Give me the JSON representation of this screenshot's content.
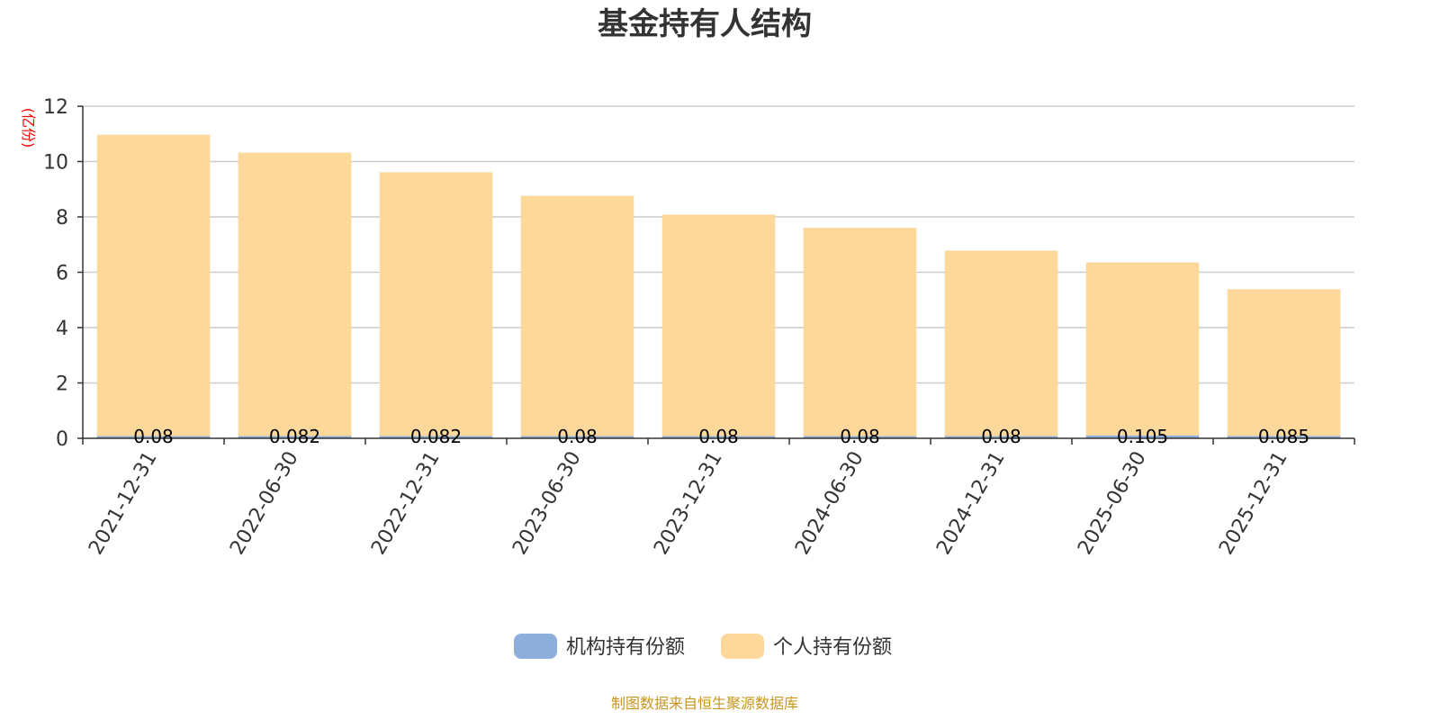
{
  "chart_data": {
    "type": "bar",
    "stacked": true,
    "title": "基金持有人结构",
    "unit_label": "(亿份)",
    "categories": [
      "2021-12-31",
      "2022-06-30",
      "2022-12-31",
      "2023-06-30",
      "2023-12-31",
      "2024-06-30",
      "2024-12-31",
      "2025-06-30",
      "2025-12-31"
    ],
    "series": [
      {
        "name": "机构持有份额",
        "color": "#8eaedb",
        "values": [
          0.08,
          0.082,
          0.082,
          0.08,
          0.08,
          0.08,
          0.08,
          0.105,
          0.085
        ],
        "labels": [
          "0.08",
          "0.082",
          "0.082",
          "0.08",
          "0.08",
          "0.08",
          "0.08",
          "0.105",
          "0.085"
        ]
      },
      {
        "name": "个人持有份额",
        "color": "#fdd89b",
        "values": [
          10.89,
          10.24,
          9.53,
          8.68,
          8.0,
          7.53,
          6.7,
          6.25,
          5.3
        ]
      }
    ],
    "yticks": [
      "0",
      "2",
      "4",
      "6",
      "8",
      "10",
      "12"
    ],
    "ylim": [
      0,
      12
    ],
    "grid": true,
    "legend_position": "bottom"
  },
  "source_note": "制图数据来自恒生聚源数据库"
}
